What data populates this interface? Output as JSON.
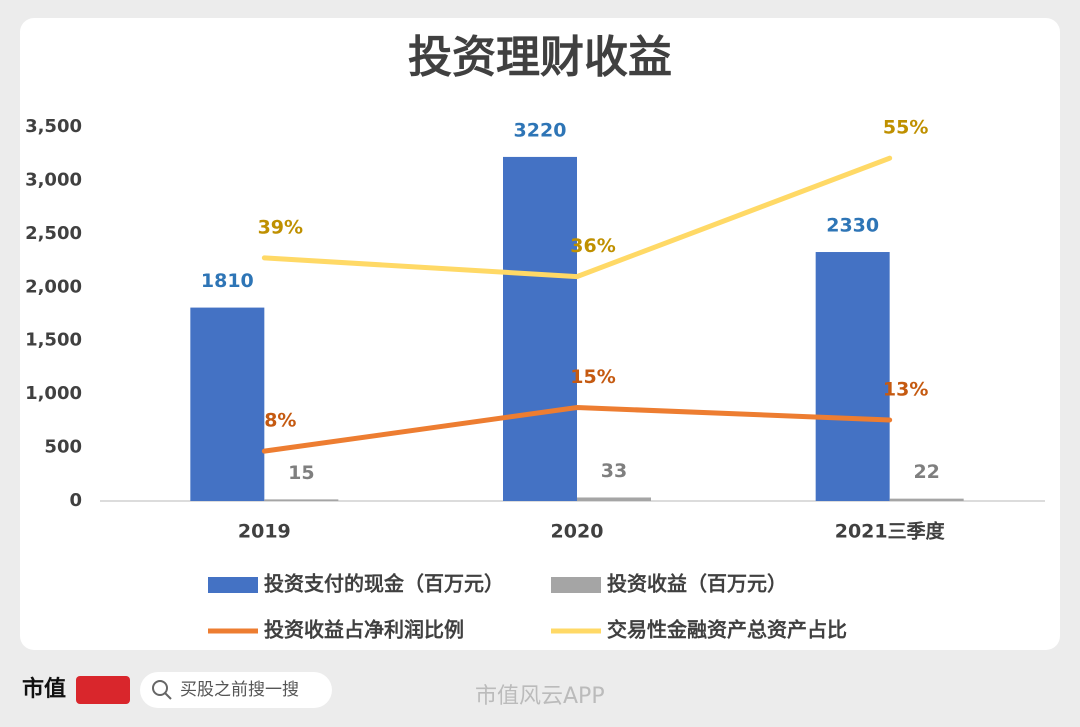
{
  "chart_data": {
    "type": "bar",
    "title": "投资理财收益",
    "categories": [
      "2019",
      "2020",
      "2021三季度"
    ],
    "series": [
      {
        "name": "投资支付的现金（百万元）",
        "type": "bar",
        "color": "#4472c4",
        "label_color": "#2e75b6",
        "values": [
          1810,
          3220,
          2330
        ]
      },
      {
        "name": "投资收益（百万元）",
        "type": "bar",
        "color": "#a5a5a5",
        "label_color": "#7f7f7f",
        "values": [
          15,
          33,
          22
        ]
      },
      {
        "name": "投资收益占净利润比例",
        "type": "line",
        "axis": "y2",
        "color": "#ed7d31",
        "label_color": "#c55a11",
        "values": [
          8,
          15,
          13
        ],
        "value_labels": [
          "8%",
          "15%",
          "13%"
        ]
      },
      {
        "name": "交易性金融资产总资产占比",
        "type": "line",
        "axis": "y2",
        "color": "#ffd966",
        "label_color": "#bf9000",
        "values": [
          39,
          36,
          55
        ],
        "value_labels": [
          "39%",
          "36%",
          "55%"
        ]
      }
    ],
    "ylim": [
      0,
      3500
    ],
    "yticks": [
      0,
      500,
      {
        "value": 1000,
        "label": "1,000"
      },
      {
        "value": 1500,
        "label": "1,500"
      },
      {
        "value": 2000,
        "label": "2,000"
      },
      {
        "value": 2500,
        "label": "2,500"
      },
      {
        "value": 3000,
        "label": "3,000"
      },
      {
        "value": 3500,
        "label": "3,500"
      }
    ],
    "y2lim": [
      0,
      60
    ],
    "grid": false
  },
  "footer": {
    "brand": "市值",
    "search": "买股之前搜一搜",
    "watermark": "市值风云APP"
  }
}
